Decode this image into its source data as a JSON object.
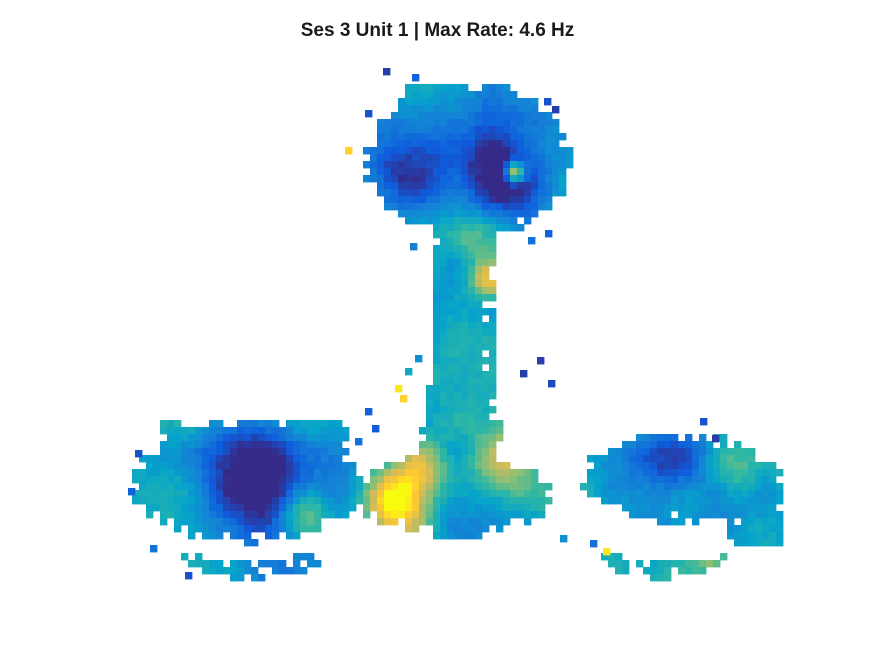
{
  "chart_data": {
    "type": "heatmap",
    "title": "Ses 3 Unit 1 | Max Rate: 4.6 Hz",
    "max_rate_hz": 4.6,
    "units": "Hz",
    "axes_visible": false,
    "colormap": "parula",
    "colormap_stops": [
      "#352a87",
      "#0f5cdd",
      "#1481d6",
      "#06a4ca",
      "#2eb7a4",
      "#87bf77",
      "#d1bb59",
      "#fec832",
      "#f9fb0e"
    ]
  }
}
